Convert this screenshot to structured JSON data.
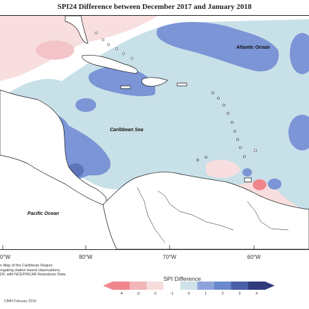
{
  "title": "SPI24 Difference between December 2017 and January 2018",
  "ocean_labels": {
    "atlantic": "Atlantic Ocean",
    "caribbean": "Caribbean Sea",
    "pacific": "Pacific Ocean"
  },
  "longitude_labels": [
    "80°W",
    "70°W",
    "60°W"
  ],
  "left_edge_lon_fragment": "0°W",
  "note_lines": [
    "n Map of the Caribbean Region.",
    "regating station based observations,",
    "DF, with NCEP/NCAR Reanalysis Data."
  ],
  "credit": "CIMH February 2018",
  "legend": {
    "title": "SPI Difference",
    "ticks": [
      "-4",
      "-3",
      "-2",
      "-1",
      "0",
      "1",
      "2",
      "3",
      "4"
    ],
    "colors": [
      "#f0868c",
      "#f2b6b8",
      "#f7dcdc",
      "#ffffff",
      "#cfe2ea",
      "#8fa3db",
      "#6a88cc",
      "#4a5fa8",
      "#2f3b7a"
    ]
  },
  "colors": {
    "wet_light": "#c8e0e8",
    "wet_mid": "#7b95d6",
    "dry_light": "#f8dede",
    "dry_mid": "#f0a7ad"
  }
}
